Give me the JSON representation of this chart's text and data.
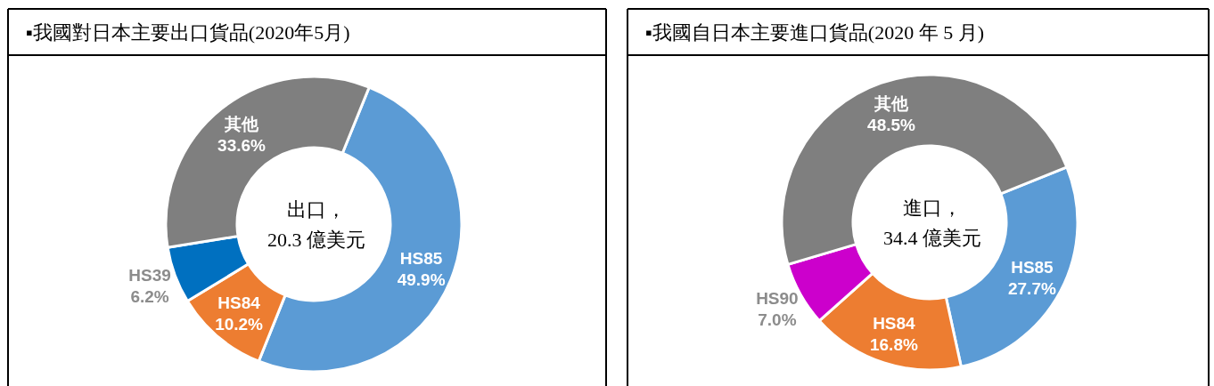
{
  "chart_data": [
    {
      "type": "donut",
      "title": "▪我國對日本主要出口貨品(2020年5月)",
      "categories": [
        "HS85",
        "HS84",
        "HS39",
        "其他"
      ],
      "values": [
        49.9,
        10.2,
        6.2,
        33.6
      ],
      "colors": [
        "#5b9bd5",
        "#ed7d31",
        "#0070c0",
        "#7f7f7f"
      ],
      "value_labels": [
        "49.9%",
        "10.2%",
        "6.2%",
        "33.6%"
      ],
      "annotations": [
        "出口，",
        "20.3 億美元"
      ]
    },
    {
      "type": "donut",
      "title": "▪我國自日本主要進口貨品(2020 年 5 月)",
      "categories": [
        "HS85",
        "HS84",
        "HS90",
        "其他"
      ],
      "values": [
        27.7,
        16.8,
        7.0,
        48.5
      ],
      "colors": [
        "#5b9bd5",
        "#ed7d31",
        "#cc00cc",
        "#7f7f7f"
      ],
      "value_labels": [
        "27.7%",
        "16.8%",
        "7.0%",
        "48.5%"
      ],
      "annotations": [
        "進口，",
        "34.4 億美元"
      ]
    }
  ]
}
